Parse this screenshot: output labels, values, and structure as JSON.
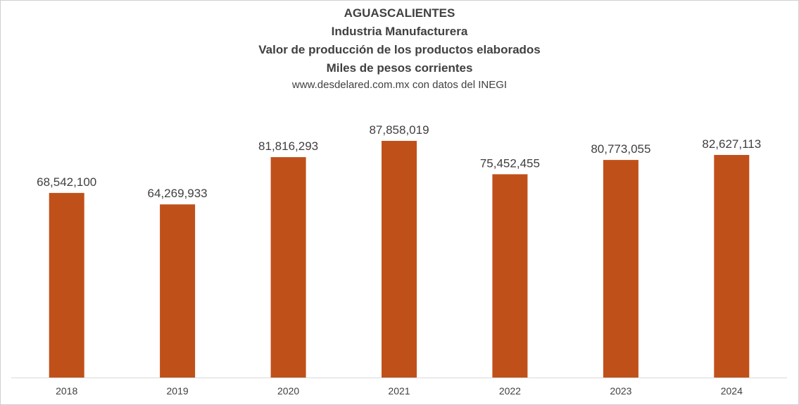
{
  "chart_data": {
    "type": "bar",
    "title_lines": [
      "AGUASCALIENTES",
      "Industria Manufacturera",
      "Valor de producción  de los productos elaborados",
      "Miles de pesos corrientes"
    ],
    "subtitle": "www.desdelared.com.mx con datos del INEGI",
    "categories": [
      "2018",
      "2019",
      "2020",
      "2021",
      "2022",
      "2023",
      "2024"
    ],
    "values": [
      68542100,
      64269933,
      81816293,
      87858019,
      75452455,
      80773055,
      82627113
    ],
    "value_labels": [
      "68,542,100",
      "64,269,933",
      "81,816,293",
      "87,858,019",
      "75,452,455",
      "80,773,055",
      "82,627,113"
    ],
    "bar_color": "#C0501A",
    "ylim": [
      0,
      100000000
    ],
    "grid": false,
    "legend": "none"
  }
}
